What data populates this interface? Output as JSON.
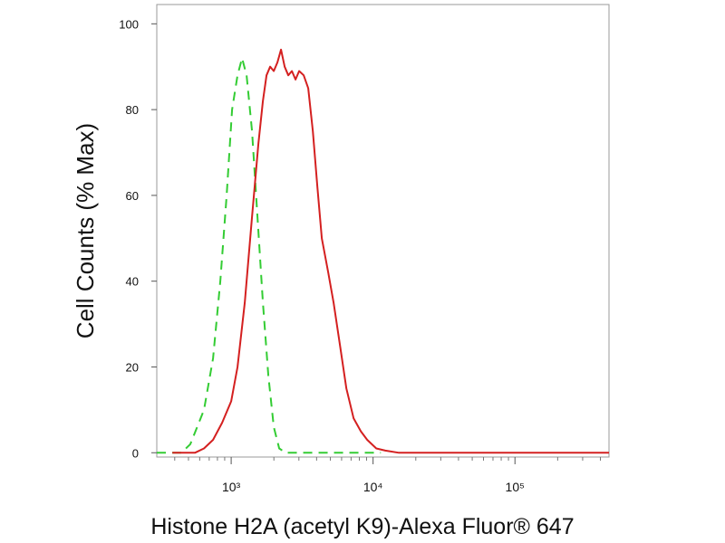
{
  "chart_data": {
    "type": "line",
    "xlabel": "Histone H2A (acetyl K9)-Alexa Fluor® 647",
    "ylabel": "Cell Counts (% Max)",
    "xscale": "log",
    "xlim": [
      299,
      460000
    ],
    "ylim": [
      -1,
      104.5
    ],
    "xticks": [
      {
        "value": 1000,
        "label": "10³"
      },
      {
        "value": 10000,
        "label": "10⁴"
      },
      {
        "value": 100000,
        "label": "10⁵"
      }
    ],
    "xminorticks": [
      400,
      500,
      600,
      700,
      800,
      900,
      2000,
      3000,
      4000,
      5000,
      6000,
      7000,
      8000,
      9000,
      20000,
      30000,
      40000,
      50000,
      60000,
      70000,
      80000,
      90000,
      200000,
      300000,
      400000
    ],
    "yticks": [
      0,
      20,
      40,
      60,
      80,
      100
    ],
    "series": [
      {
        "color": "#33cc33",
        "dash": true,
        "x": [
          299,
          446,
          515,
          643,
          745,
          838,
          929,
          1015,
          1108,
          1193,
          1284,
          1403,
          1532,
          1674,
          1828,
          1997,
          2182,
          2417,
          11330
        ],
        "values": [
          0,
          0,
          2,
          10,
          22,
          40,
          60,
          80,
          88,
          92,
          88,
          75,
          55,
          35,
          18,
          6,
          1,
          0,
          0
        ]
      },
      {
        "color": "#d42020",
        "dash": false,
        "x": [
          385,
          555,
          643,
          745,
          863,
          1000,
          1108,
          1247,
          1403,
          1555,
          1674,
          1775,
          1883,
          1997,
          2118,
          2246,
          2382,
          2527,
          2680,
          2843,
          3015,
          3245,
          3493,
          3760,
          4047,
          4355,
          4828,
          5272,
          5846,
          6480,
          7291,
          8201,
          9088,
          10530,
          12200,
          15210,
          460000
        ],
        "values": [
          0,
          0,
          1,
          3,
          7,
          12,
          20,
          35,
          55,
          72,
          82,
          88,
          90,
          89,
          91,
          94,
          90,
          88,
          89,
          87,
          89,
          88,
          85,
          75,
          62,
          50,
          42,
          35,
          25,
          15,
          8,
          5,
          3,
          1,
          0.5,
          0,
          0
        ]
      }
    ]
  }
}
